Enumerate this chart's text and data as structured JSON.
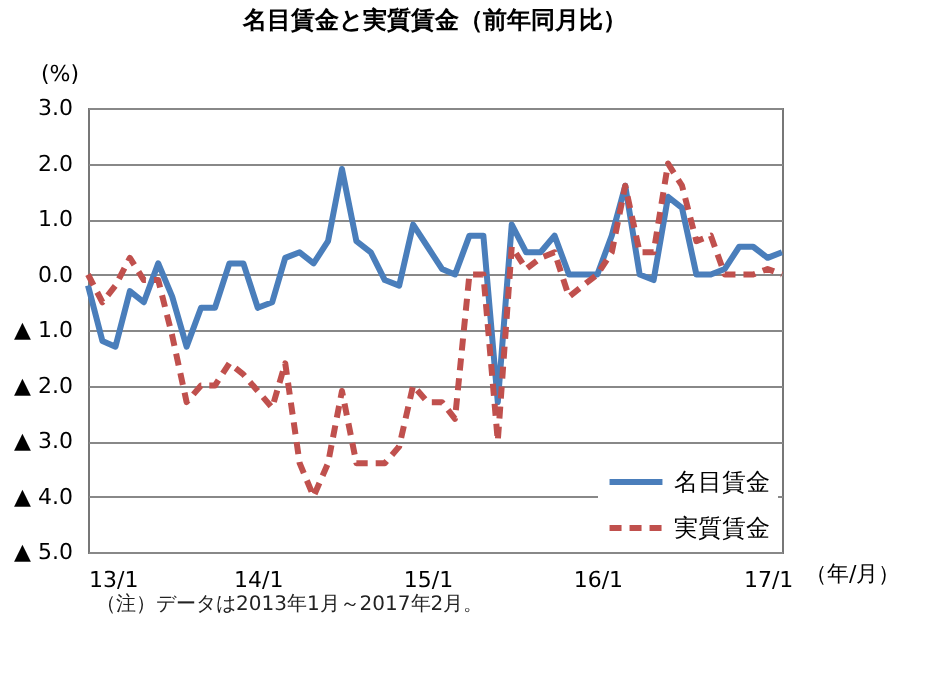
{
  "chart_data": {
    "type": "line",
    "title": "名目賃金と実質賃金（前年同月比）",
    "ylabel": "(%)",
    "xlabel": "（年/月）",
    "annotations": [
      "（注）データは2013年1月～2017年2月。"
    ],
    "x": [
      "2013-01",
      "2013-02",
      "2013-03",
      "2013-04",
      "2013-05",
      "2013-06",
      "2013-07",
      "2013-08",
      "2013-09",
      "2013-10",
      "2013-11",
      "2013-12",
      "2014-01",
      "2014-02",
      "2014-03",
      "2014-04",
      "2014-05",
      "2014-06",
      "2014-07",
      "2014-08",
      "2014-09",
      "2014-10",
      "2014-11",
      "2014-12",
      "2015-01",
      "2015-02",
      "2015-03",
      "2015-04",
      "2015-05",
      "2015-06",
      "2015-07",
      "2015-08",
      "2015-09",
      "2015-10",
      "2015-11",
      "2015-12",
      "2016-01",
      "2016-02",
      "2016-03",
      "2016-04",
      "2016-05",
      "2016-06",
      "2016-07",
      "2016-08",
      "2016-09",
      "2016-10",
      "2016-11",
      "2016-12",
      "2017-01",
      "2017-02"
    ],
    "series": [
      {
        "name": "名目賃金",
        "color": "#4a7ebb",
        "line_style": "solid",
        "values": [
          -0.2,
          -1.2,
          -1.3,
          -0.3,
          -0.5,
          0.2,
          -0.4,
          -1.3,
          -0.6,
          -0.6,
          0.2,
          0.2,
          -0.6,
          -0.5,
          0.3,
          0.4,
          0.2,
          0.6,
          1.9,
          0.6,
          0.4,
          -0.1,
          -0.2,
          0.9,
          0.5,
          0.1,
          0.0,
          0.7,
          0.7,
          -2.3,
          0.9,
          0.4,
          0.4,
          0.7,
          0.0,
          0.0,
          0.0,
          0.7,
          1.6,
          0.0,
          -0.1,
          1.4,
          1.2,
          0.0,
          0.0,
          0.1,
          0.5,
          0.5,
          0.3,
          0.4
        ]
      },
      {
        "name": "実質賃金",
        "color": "#c0504d",
        "line_style": "dashed",
        "values": [
          0.0,
          -0.5,
          -0.2,
          0.3,
          -0.1,
          -0.1,
          -1.1,
          -2.3,
          -2.0,
          -2.0,
          -1.6,
          -1.8,
          -2.1,
          -2.4,
          -1.6,
          -3.4,
          -4.0,
          -3.4,
          -2.1,
          -3.4,
          -3.4,
          -3.4,
          -3.1,
          -2.0,
          -2.3,
          -2.3,
          -2.6,
          0.0,
          0.0,
          -3.0,
          0.5,
          0.1,
          0.3,
          0.4,
          -0.4,
          -0.2,
          0.0,
          0.4,
          1.6,
          0.4,
          0.4,
          2.0,
          1.6,
          0.6,
          0.7,
          0.0,
          0.0,
          0.0,
          0.1,
          0.0
        ]
      }
    ],
    "xlim": [
      "2013-01",
      "2017-02"
    ],
    "xticks": [
      {
        "value": "2013-01",
        "label": "13/1"
      },
      {
        "value": "2014-01",
        "label": "14/1"
      },
      {
        "value": "2015-01",
        "label": "15/1"
      },
      {
        "value": "2016-01",
        "label": "16/1"
      },
      {
        "value": "2017-01",
        "label": "17/1"
      }
    ],
    "ylim": [
      -5,
      3
    ],
    "yticks": [
      {
        "value": -5,
        "label": "▲ 5.0"
      },
      {
        "value": -4,
        "label": "▲ 4.0"
      },
      {
        "value": -3,
        "label": "▲ 3.0"
      },
      {
        "value": -2,
        "label": "▲ 2.0"
      },
      {
        "value": -1,
        "label": "▲ 1.0"
      },
      {
        "value": 0,
        "label": "0.0"
      },
      {
        "value": 1,
        "label": "1.0"
      },
      {
        "value": 2,
        "label": "2.0"
      },
      {
        "value": 3,
        "label": "3.0"
      }
    ],
    "grid": "y",
    "legend": "bottom right",
    "marker": "none"
  }
}
